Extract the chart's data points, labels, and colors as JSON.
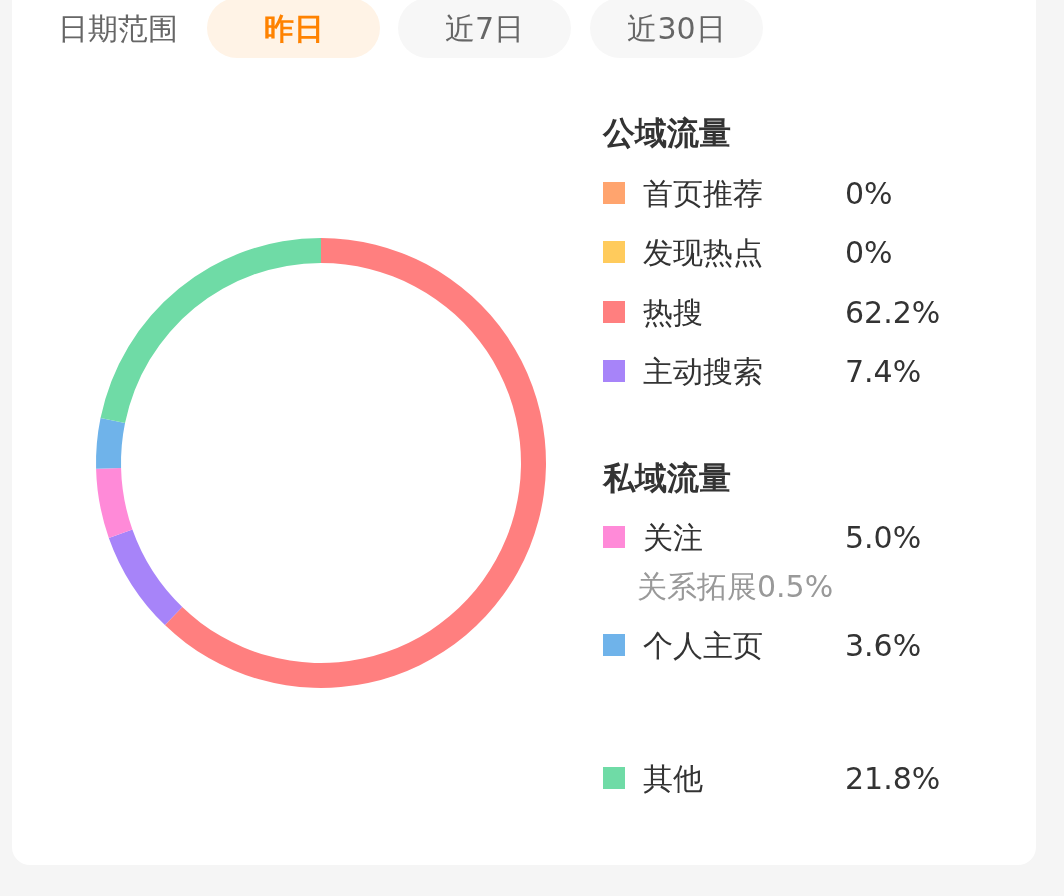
{
  "chart_data": {
    "type": "donut",
    "categories": [
      "首页推荐",
      "发现热点",
      "热搜",
      "主动搜索",
      "关注",
      "个人主页",
      "其他"
    ],
    "values": [
      0,
      0,
      62.2,
      7.4,
      5.0,
      3.6,
      21.8
    ],
    "colors": [
      "#ffa46e",
      "#ffcb5c",
      "#ff7f7f",
      "#a784f9",
      "#ff8ad8",
      "#6fb3ea",
      "#6fdba6"
    ],
    "value_labels": [
      "0%",
      "0%",
      "62.2%",
      "7.4%",
      "5.0%",
      "3.6%",
      "21.8%"
    ],
    "legend": "right",
    "annotations": [
      "日期范围",
      "昨日",
      "近7日",
      "近30日",
      "公域流量",
      "私域流量",
      "关系拓展0.5%"
    ]
  }
}
